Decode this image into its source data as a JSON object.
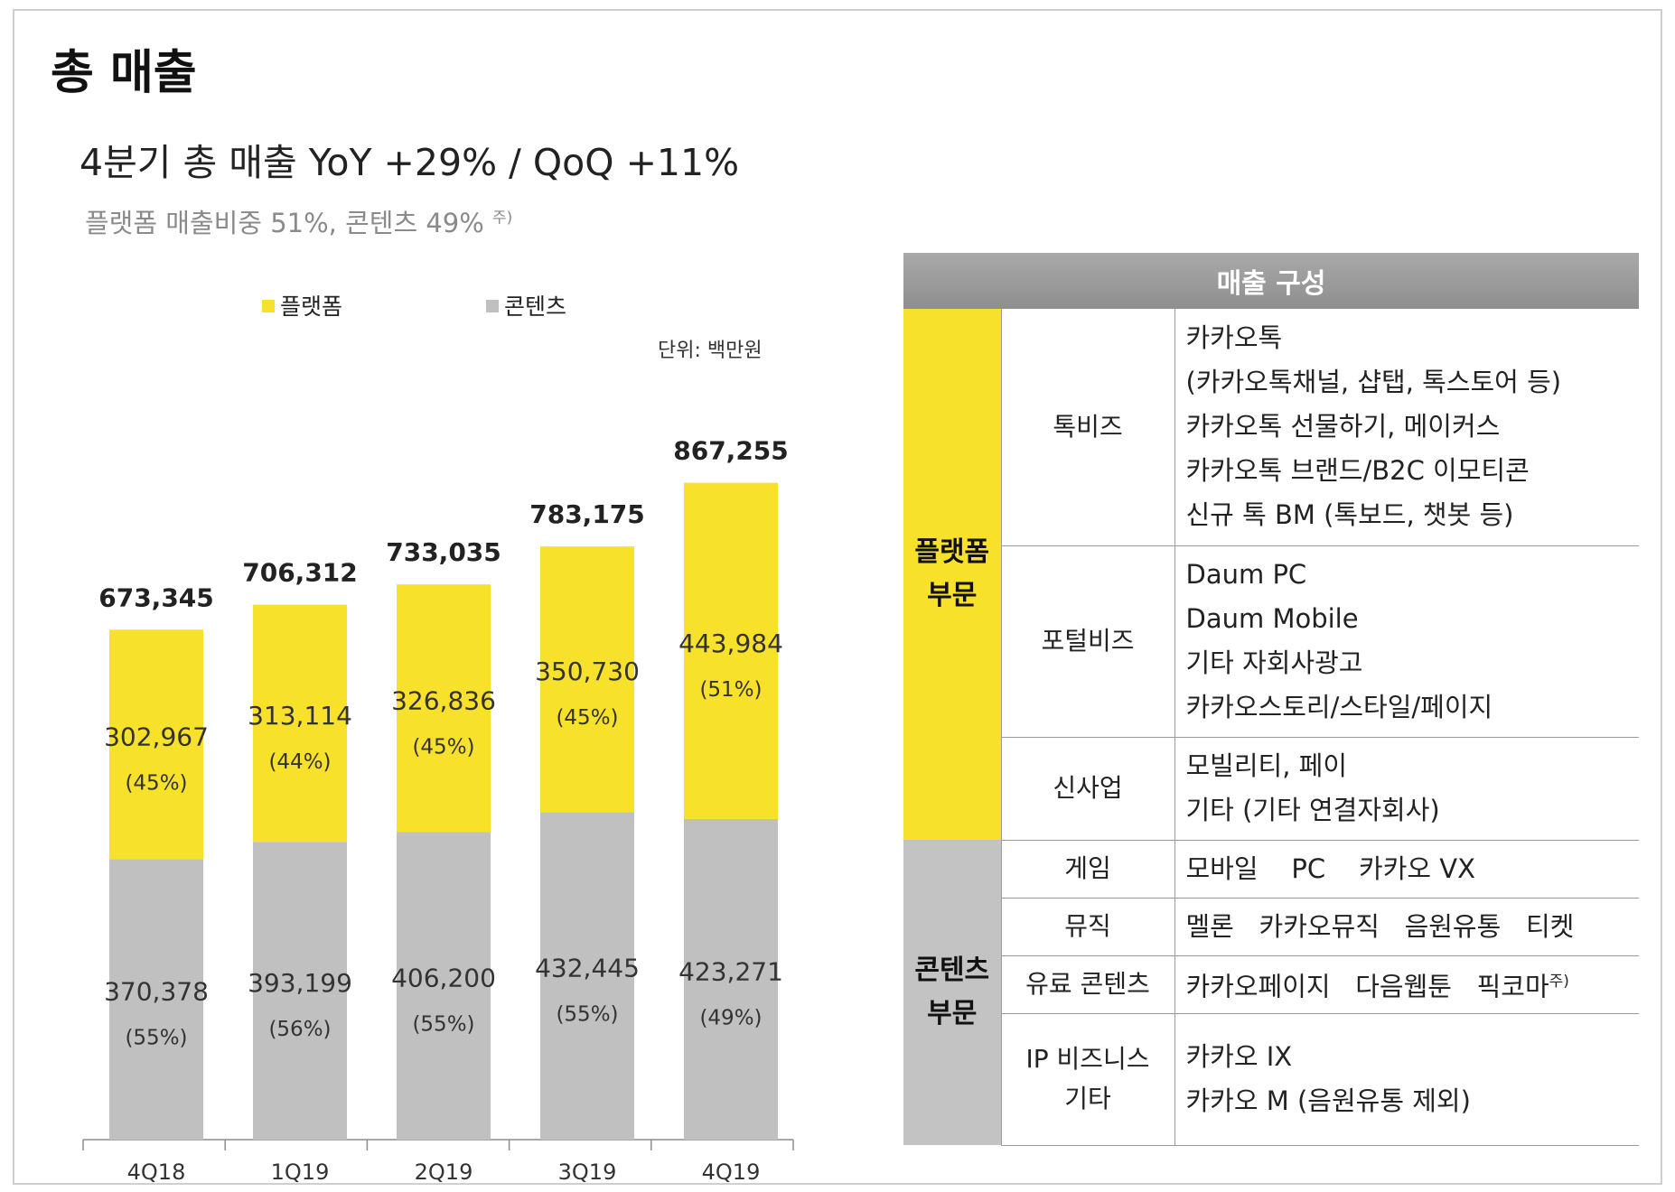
{
  "page_title": "총 매출",
  "headline": "4분기 총 매출  YoY +29% / QoQ +11%",
  "subline": "플랫폼 매출비중 51%, 콘텐츠 49%",
  "subline_note": "주)",
  "colors": {
    "platform": "#f8e12a",
    "content": "#c0c0c0",
    "header": "#999999"
  },
  "chart_data": {
    "type": "bar",
    "stacked": true,
    "unit_label": "단위: 백만원",
    "legend_position": "top",
    "categories": [
      "4Q18",
      "1Q19",
      "2Q19",
      "3Q19",
      "4Q19"
    ],
    "series": [
      {
        "name": "콘텐츠",
        "values": [
          370378,
          393199,
          406200,
          432445,
          423271
        ],
        "labels": [
          "370,378",
          "393,199",
          "406,200",
          "432,445",
          "423,271"
        ],
        "shares": [
          "(55%)",
          "(56%)",
          "(55%)",
          "(55%)",
          "(49%)"
        ]
      },
      {
        "name": "플랫폼",
        "values": [
          302967,
          313114,
          326836,
          350730,
          443984
        ],
        "labels": [
          "302,967",
          "313,114",
          "326,836",
          "350,730",
          "443,984"
        ],
        "shares": [
          "(45%)",
          "(44%)",
          "(45%)",
          "(45%)",
          "(51%)"
        ]
      }
    ],
    "totals": [
      673345,
      706312,
      733035,
      783175,
      867255
    ],
    "total_labels": [
      "673,345",
      "706,312",
      "733,035",
      "783,175",
      "867,255"
    ],
    "ylim": [
      0,
      1000000
    ]
  },
  "composition": {
    "header": "매출 구성",
    "segments": [
      {
        "name_lines": [
          "플랫폼",
          "부문"
        ],
        "rows": [
          {
            "category_lines": [
              "톡비즈"
            ],
            "items": [
              "카카오톡",
              "(카카오톡채널, 샵탭, 톡스토어 등)",
              "카카오톡 선물하기, 메이커스",
              "카카오톡 브랜드/B2C 이모티콘",
              "신규 톡 BM (톡보드, 챗봇 등)"
            ]
          },
          {
            "category_lines": [
              "포털비즈"
            ],
            "items": [
              "Daum PC",
              "Daum Mobile",
              "기타 자회사광고",
              "카카오스토리/스타일/페이지"
            ]
          },
          {
            "category_lines": [
              "신사업"
            ],
            "items": [
              "모빌리티, 페이",
              "기타 (기타 연결자회사)"
            ]
          }
        ]
      },
      {
        "name_lines": [
          "콘텐츠",
          "부문"
        ],
        "rows": [
          {
            "category_lines": [
              "게임"
            ],
            "items": [
              "모바일    PC    카카오 VX"
            ]
          },
          {
            "category_lines": [
              "뮤직"
            ],
            "items": [
              "멜론   카카오뮤직   음원유통   티켓"
            ]
          },
          {
            "category_lines": [
              "유료 콘텐츠"
            ],
            "items": [
              "카카오페이지   다음웹툰   픽코마"
            ],
            "note": "주)"
          },
          {
            "category_lines": [
              "IP 비즈니스",
              "기타"
            ],
            "items": [
              "카카오 IX",
              "카카오 M (음원유통 제외)"
            ]
          }
        ]
      }
    ]
  }
}
